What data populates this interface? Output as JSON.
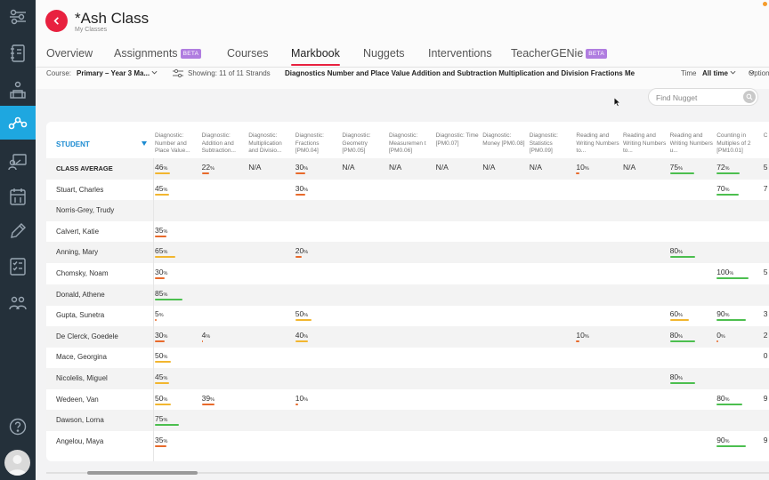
{
  "header": {
    "title": "*Ash Class",
    "subtitle": "My Classes"
  },
  "tabs": [
    {
      "label": "Overview"
    },
    {
      "label": "Assignments",
      "badge": "BETA"
    },
    {
      "label": "Courses"
    },
    {
      "label": "Markbook",
      "active": true
    },
    {
      "label": "Nuggets"
    },
    {
      "label": "Interventions"
    },
    {
      "label": "TeacherGENie",
      "badge": "BETA"
    }
  ],
  "filters": {
    "course_label": "Course:",
    "course_value": "Primary – Year 3 Ma...",
    "showing_label": "Showing: 11 of 11 Strands",
    "strands": "Diagnostics Number and Place Value Addition and Subtraction Multiplication and Division Fractions Me",
    "time_label": "Time",
    "time_value": "All time",
    "options_label": "Options"
  },
  "search": {
    "placeholder": "Find Nugget"
  },
  "table": {
    "student_header": "STUDENT",
    "columns": [
      "Diagnostic: Number and Place Value...",
      "Diagnostic: Addition and Subtraction...",
      "Diagnostic: Multiplication and Divisio...",
      "Diagnostic: Fractions [PM0.04]",
      "Diagnostic: Geometry [PM0.05]",
      "Diagnostic: Measuremen t [PM0.06]",
      "Diagnostic: Time [PM0.07]",
      "Diagnostic: Money [PM0.08]",
      "Diagnostic: Statistics [PM0.09]",
      "Reading and Writing Numbers to...",
      "Reading and Writing Numbers to...",
      "Reading and Writing Numbers u...",
      "Counting in Multiples of 2 [PM10.01]",
      "C M"
    ],
    "rows": [
      {
        "name": "CLASS AVERAGE",
        "avg": true,
        "cells": [
          "46%",
          "22%",
          "N/A",
          "30%",
          "N/A",
          "N/A",
          "N/A",
          "N/A",
          "N/A",
          "10%",
          "N/A",
          "75%",
          "72%",
          "5"
        ]
      },
      {
        "name": "Stuart, Charles",
        "cells": [
          "45%",
          "",
          "",
          "30%",
          "",
          "",
          "",
          "",
          "",
          "",
          "",
          "",
          "70%",
          "7"
        ]
      },
      {
        "name": "Norris-Grey, Trudy",
        "cells": [
          "",
          "",
          "",
          "",
          "",
          "",
          "",
          "",
          "",
          "",
          "",
          "",
          "",
          ""
        ]
      },
      {
        "name": "Calvert, Katie",
        "cells": [
          "35%",
          "",
          "",
          "",
          "",
          "",
          "",
          "",
          "",
          "",
          "",
          "",
          "",
          ""
        ]
      },
      {
        "name": "Anning, Mary",
        "cells": [
          "65%",
          "",
          "",
          "20%",
          "",
          "",
          "",
          "",
          "",
          "",
          "",
          "80%",
          "",
          ""
        ]
      },
      {
        "name": "Chomsky, Noam",
        "cells": [
          "30%",
          "",
          "",
          "",
          "",
          "",
          "",
          "",
          "",
          "",
          "",
          "",
          "100%",
          "5"
        ]
      },
      {
        "name": "Donald, Athene",
        "cells": [
          "85%",
          "",
          "",
          "",
          "",
          "",
          "",
          "",
          "",
          "",
          "",
          "",
          "",
          ""
        ]
      },
      {
        "name": "Gupta, Sunetra",
        "cells": [
          "5%",
          "",
          "",
          "50%",
          "",
          "",
          "",
          "",
          "",
          "",
          "",
          "60%",
          "90%",
          "3"
        ]
      },
      {
        "name": "De Clerck, Goedele",
        "cells": [
          "30%",
          "4%",
          "",
          "40%",
          "",
          "",
          "",
          "",
          "",
          "10%",
          "",
          "80%",
          "0%",
          "2"
        ]
      },
      {
        "name": "Mace, Georgina",
        "cells": [
          "50%",
          "",
          "",
          "",
          "",
          "",
          "",
          "",
          "",
          "",
          "",
          "",
          "",
          "0"
        ]
      },
      {
        "name": "Nicolelis, Miguel",
        "cells": [
          "45%",
          "",
          "",
          "",
          "",
          "",
          "",
          "",
          "",
          "",
          "",
          "80%",
          "",
          ""
        ]
      },
      {
        "name": "Wedeen, Van",
        "cells": [
          "50%",
          "39%",
          "",
          "10%",
          "",
          "",
          "",
          "",
          "",
          "",
          "",
          "",
          "80%",
          "9"
        ]
      },
      {
        "name": "Dawson, Lorna",
        "cells": [
          "75%",
          "",
          "",
          "",
          "",
          "",
          "",
          "",
          "",
          "",
          "",
          "",
          "",
          ""
        ]
      },
      {
        "name": "Angelou, Maya",
        "cells": [
          "35%",
          "",
          "",
          "",
          "",
          "",
          "",
          "",
          "",
          "",
          "",
          "",
          "90%",
          "9"
        ]
      }
    ]
  },
  "colors": {
    "accent": "#e8213f",
    "sidebar": "#24303a",
    "sidebar_active": "#1ea7e0",
    "bar_low": "#e86a2b",
    "bar_mid": "#f2b62f",
    "bar_high": "#4cbf4f"
  },
  "sidebar": {
    "icons": [
      "sliders-icon",
      "notebook-icon",
      "classroom-icon",
      "network-icon",
      "presentation-icon",
      "calendar-icon",
      "pencil-icon",
      "checklist-icon",
      "people-icon",
      "help-icon"
    ]
  }
}
